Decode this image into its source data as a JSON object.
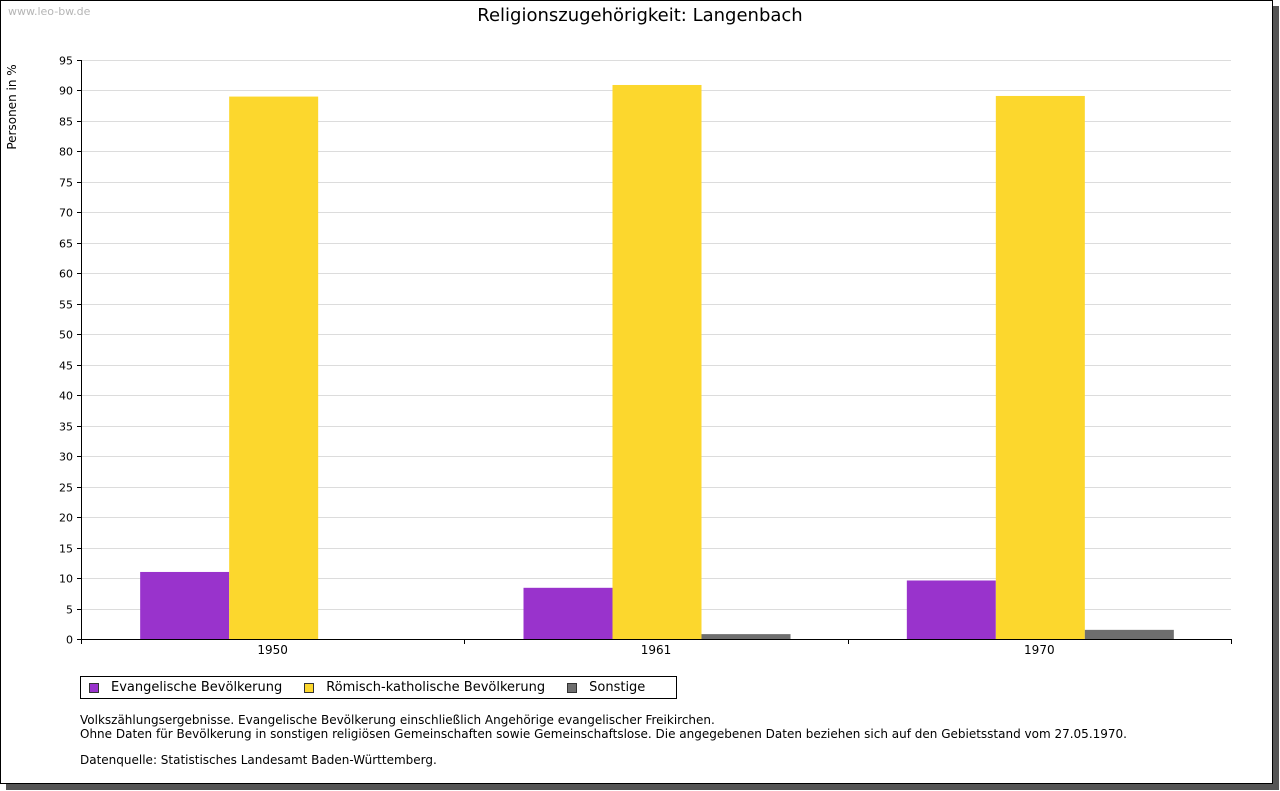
{
  "watermark": "www.leo-bw.de",
  "colors": {
    "evangelisch": "#9933cc",
    "katholisch": "#fcd72d",
    "sonstige": "#6e6e6e"
  },
  "chart_data": {
    "type": "bar",
    "title": "Religionszugehörigkeit: Langenbach",
    "xlabel": "",
    "ylabel": "Personen in %",
    "ylim": [
      0,
      95
    ],
    "yticks": [
      0,
      5,
      10,
      15,
      20,
      25,
      30,
      35,
      40,
      45,
      50,
      55,
      60,
      65,
      70,
      75,
      80,
      85,
      90,
      95
    ],
    "grid": true,
    "categories": [
      "1950",
      "1961",
      "1970"
    ],
    "series": [
      {
        "name": "Evangelische Bevölkerung",
        "color_key": "evangelisch",
        "values": [
          11.0,
          8.4,
          9.6
        ]
      },
      {
        "name": "Römisch-katholische Bevölkerung",
        "color_key": "katholisch",
        "values": [
          89.0,
          90.9,
          89.1
        ]
      },
      {
        "name": "Sonstige",
        "color_key": "sonstige",
        "values": [
          0.0,
          0.8,
          1.5
        ]
      }
    ],
    "legend_placement": "bottom-left"
  },
  "notes": {
    "line1": "Volkszählungsergebnisse. Evangelische Bevölkerung einschließlich Angehörige evangelischer Freikirchen.",
    "line2": "Ohne Daten für Bevölkerung in sonstigen religiösen Gemeinschaften sowie Gemeinschaftslose. Die angegebenen Daten beziehen sich auf den Gebietsstand vom 27.05.1970.",
    "source": "Datenquelle: Statistisches Landesamt Baden-Württemberg."
  }
}
